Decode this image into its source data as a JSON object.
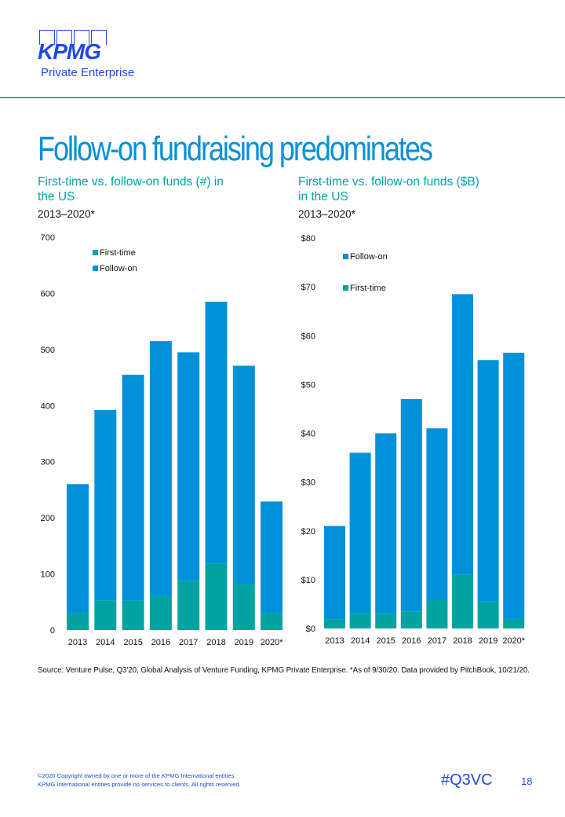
{
  "brand": {
    "logo_text": "KPMG",
    "logo_sub": "Private Enterprise",
    "primary_color": "#1e49e2",
    "accent_color": "#0091da",
    "teal_color": "#00a3a1",
    "navy_color": "#00338d"
  },
  "page": {
    "title": "Follow-on fundraising predominates",
    "source": "Source: Venture Pulse, Q3'20, Global Analysis of Venture Funding, KPMG Private Enterprise. *As of 9/30/20. Data provided by PitchBook, 10/21/20.",
    "copyright_line1": "©2020 Copyright owned by one or more of the KPMG International entities.",
    "copyright_line2": "KPMG International entities provide no services to clients. All rights reserved.",
    "hashtag": "#Q3VC",
    "page_number": "18"
  },
  "charts": [
    {
      "title_line1": "First-time vs. follow-on funds (#) in",
      "title_line2": "the US",
      "subtitle": "2013–2020*"
    },
    {
      "title_line1": "First-time vs. follow-on funds ($B)",
      "title_line2": "in the US",
      "subtitle": "2013–2020*"
    }
  ],
  "chart_data": [
    {
      "type": "bar",
      "stacked": true,
      "title": "First-time vs. follow-on funds (#) in the US",
      "subtitle": "2013–2020*",
      "categories": [
        "2013",
        "2014",
        "2015",
        "2016",
        "2017",
        "2018",
        "2019",
        "2020*"
      ],
      "series": [
        {
          "name": "First-time",
          "color": "#00a3a1",
          "values": [
            30,
            53,
            52,
            61,
            88,
            118,
            82,
            30
          ]
        },
        {
          "name": "Follow-on",
          "color": "#0091da",
          "values": [
            230,
            339,
            403,
            454,
            407,
            467,
            389,
            199
          ]
        }
      ],
      "ylim": [
        0,
        700
      ],
      "yticks": [
        0,
        100,
        200,
        300,
        400,
        500,
        600,
        700
      ],
      "ytick_labels": [
        "0",
        "100",
        "200",
        "300",
        "400",
        "500",
        "600",
        "700"
      ],
      "legend_order": [
        "First-time",
        "Follow-on"
      ],
      "legend": "top-left",
      "grid": false
    },
    {
      "type": "bar",
      "stacked": true,
      "title": "First-time vs. follow-on funds ($B) in the US",
      "subtitle": "2013–2020*",
      "categories": [
        "2013",
        "2014",
        "2015",
        "2016",
        "2017",
        "2018",
        "2019",
        "2020*"
      ],
      "series": [
        {
          "name": "First-time",
          "color": "#00a3a1",
          "values": [
            1.8,
            3.0,
            3.0,
            3.5,
            5.8,
            11.0,
            5.5,
            2.0
          ]
        },
        {
          "name": "Follow-on",
          "color": "#0091da",
          "values": [
            19.2,
            33.0,
            37.0,
            43.5,
            35.2,
            57.5,
            49.5,
            54.5
          ]
        }
      ],
      "ylim": [
        0,
        80
      ],
      "yticks": [
        0,
        10,
        20,
        30,
        40,
        50,
        60,
        70,
        80
      ],
      "ytick_labels": [
        "$0",
        "$10",
        "$20",
        "$30",
        "$40",
        "$50",
        "$60",
        "$70",
        "$80"
      ],
      "legend_order": [
        "Follow-on",
        "First-time"
      ],
      "legend": "top-left",
      "grid": false
    }
  ]
}
